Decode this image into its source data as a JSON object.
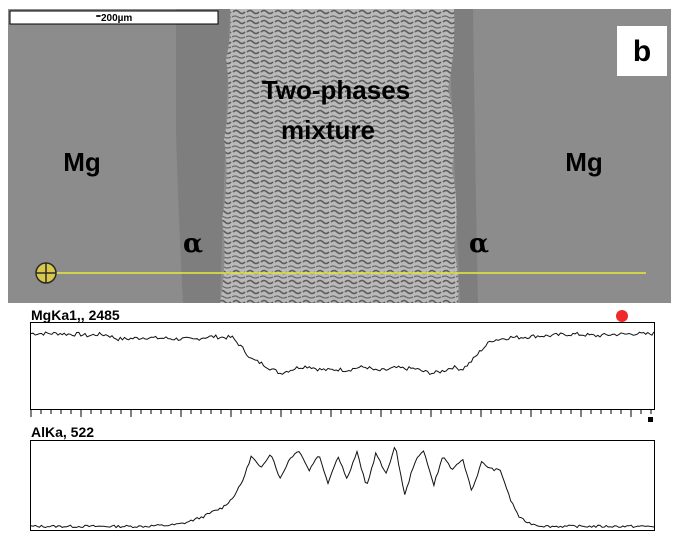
{
  "micrograph": {
    "scale_bar": "⁼200µm",
    "panel_letter": "b",
    "labels": {
      "mg_left": "Mg",
      "mg_right": "Mg",
      "alpha_left": "α",
      "alpha_right": "α",
      "center_line1": "Two-phases",
      "center_line2": "mixture"
    },
    "colors": {
      "background": "#8a8a8a",
      "scan_line": "#e8ea3a"
    }
  },
  "profiles": [
    {
      "label": "MgKa1,, 2485",
      "element": "Mg",
      "trend": [
        0.93,
        0.93,
        0.93,
        0.93,
        0.92,
        0.92,
        0.9,
        0.92,
        0.91,
        0.86,
        0.86,
        0.87,
        0.88,
        0.87,
        0.87,
        0.86,
        0.86,
        0.85,
        0.88,
        0.89,
        0.88,
        0.88,
        0.75,
        0.6,
        0.55,
        0.48,
        0.42,
        0.46,
        0.5,
        0.51,
        0.47,
        0.46,
        0.47,
        0.46,
        0.49,
        0.5,
        0.45,
        0.46,
        0.49,
        0.48,
        0.48,
        0.44,
        0.42,
        0.45,
        0.5,
        0.47,
        0.58,
        0.72,
        0.84,
        0.86,
        0.88,
        0.88,
        0.89,
        0.9,
        0.9,
        0.91,
        0.92,
        0.92,
        0.91,
        0.9,
        0.91,
        0.92,
        0.92,
        0.93,
        0.92,
        0.93
      ]
    },
    {
      "label": "AlKa, 522",
      "element": "Al",
      "trend": [
        0.02,
        0.02,
        0.02,
        0.02,
        0.02,
        0.02,
        0.02,
        0.02,
        0.02,
        0.02,
        0.02,
        0.02,
        0.02,
        0.03,
        0.03,
        0.04,
        0.06,
        0.1,
        0.14,
        0.2,
        0.25,
        0.36,
        0.55,
        0.88,
        0.72,
        0.92,
        0.6,
        0.85,
        0.95,
        0.7,
        0.9,
        0.55,
        0.88,
        0.6,
        0.93,
        0.5,
        0.92,
        0.65,
        1.0,
        0.4,
        0.8,
        0.95,
        0.52,
        0.88,
        0.7,
        0.85,
        0.45,
        0.8,
        0.72,
        0.7,
        0.35,
        0.12,
        0.06,
        0.03,
        0.02,
        0.02,
        0.02,
        0.02,
        0.02,
        0.02,
        0.02,
        0.02,
        0.02,
        0.02,
        0.02,
        0.02
      ]
    }
  ]
}
